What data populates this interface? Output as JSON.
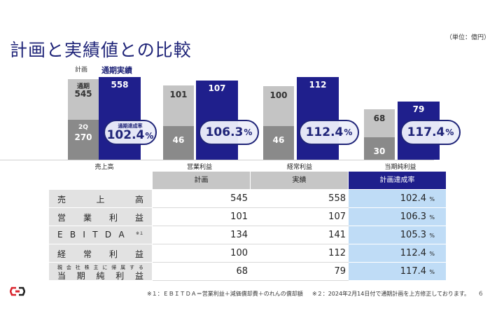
{
  "unit_note": "（単位：億円）",
  "title": "計画と実績値との比較",
  "legend": {
    "plan": "計画",
    "actual": "通期実績"
  },
  "bar_labels": {
    "plan_full": "通期",
    "plan_2q": "2Q",
    "rate_caption": "通期達成率"
  },
  "chart_data": {
    "type": "bar",
    "categories": [
      "売上高",
      "営業利益",
      "経常利益",
      "当期純利益"
    ],
    "series": [
      {
        "name": "計画",
        "values": [
          545,
          101,
          100,
          68
        ]
      },
      {
        "name": "計画 2Q",
        "values": [
          270,
          46,
          46,
          30
        ]
      },
      {
        "name": "通期実績",
        "values": [
          558,
          107,
          112,
          79
        ]
      }
    ],
    "rates": [
      {
        "num": "102.4",
        "pct": "%"
      },
      {
        "num": "106.3",
        "pct": "%"
      },
      {
        "num": "112.4",
        "pct": "%"
      },
      {
        "num": "117.4",
        "pct": "%"
      }
    ]
  },
  "table": {
    "headers": {
      "plan": "計画",
      "actual": "実績",
      "rate": "計画達成率"
    },
    "rows": [
      {
        "name_chars": [
          "売",
          "上",
          "高"
        ],
        "plan": "545",
        "actual": "558",
        "rate": "102.4",
        "pct": "%"
      },
      {
        "name_chars": [
          "営",
          "業",
          "利",
          "益"
        ],
        "plan": "101",
        "actual": "107",
        "rate": "106.3",
        "pct": "%"
      },
      {
        "name_chars": [
          "E",
          "B",
          "I",
          "T",
          "D",
          "A"
        ],
        "sup": "※１",
        "plan": "134",
        "actual": "141",
        "rate": "105.3",
        "pct": "%"
      },
      {
        "name_chars": [
          "経",
          "常",
          "利",
          "益"
        ],
        "plan": "100",
        "actual": "112",
        "rate": "112.4",
        "pct": "%"
      },
      {
        "small_chars": [
          "親",
          "会",
          "社",
          "株",
          "主",
          "に",
          "帰",
          "属",
          "す",
          "る"
        ],
        "name_chars": [
          "当",
          "期",
          "純",
          "利",
          "益"
        ],
        "plan": "68",
        "actual": "79",
        "rate": "117.4",
        "pct": "%"
      }
    ]
  },
  "footnotes": {
    "note1": "※１：ＥＢＩＴＤＡ＝営業利益＋減価償却費＋のれんの償却額",
    "note2": "※２：2024年2月14日付で通期計画を上方修正しております。"
  },
  "page_number": "6",
  "colors": {
    "navy": "#1f1f8c",
    "title": "#1f2478",
    "plan_light": "#c4c4c4",
    "plan_dark": "#8a8a8a",
    "rate_bg": "#bfdcf6",
    "logo_red": "#d9232d"
  }
}
